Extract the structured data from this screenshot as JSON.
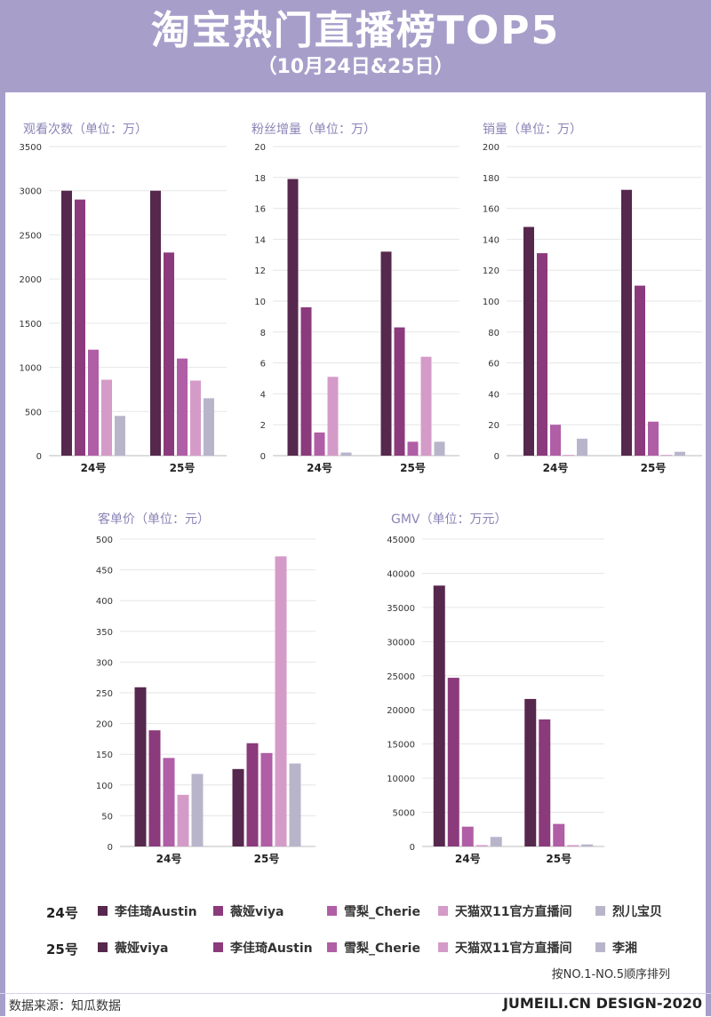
{
  "header": {
    "title": "淘宝热门直播榜TOP5",
    "subtitle": "（10月24日&25日）"
  },
  "colors": {
    "bg_band": "#a79fca",
    "series": [
      "#56284d",
      "#8b3a7c",
      "#b05ea6",
      "#d49bc8",
      "#b8b5cb"
    ],
    "series_25": [
      "#56284d",
      "#8b3a7c",
      "#b05ea6",
      "#d49bc8",
      "#b8b5cb"
    ]
  },
  "chart_data": [
    {
      "type": "bar",
      "title": "观看次数（单位：万）",
      "categories": [
        "24号",
        "25号"
      ],
      "ylim": [
        0,
        3500
      ],
      "yticks": [
        0,
        500,
        1000,
        1500,
        2000,
        2500,
        3000,
        3500
      ],
      "values": [
        [
          3000,
          2900,
          1200,
          860,
          450
        ],
        [
          3000,
          2300,
          1100,
          850,
          650
        ]
      ]
    },
    {
      "type": "bar",
      "title": "粉丝增量（单位：万）",
      "categories": [
        "24号",
        "25号"
      ],
      "ylim": [
        0,
        20
      ],
      "yticks": [
        0,
        2,
        4,
        6,
        8,
        10,
        12,
        14,
        16,
        18,
        20
      ],
      "values": [
        [
          17.9,
          9.6,
          1.5,
          5.1,
          0.2
        ],
        [
          13.2,
          8.3,
          0.9,
          6.4,
          0.9
        ]
      ]
    },
    {
      "type": "bar",
      "title": "销量（单位：万）",
      "categories": [
        "24号",
        "25号"
      ],
      "ylim": [
        0,
        200
      ],
      "yticks": [
        0,
        20,
        40,
        60,
        80,
        100,
        120,
        140,
        160,
        180,
        200
      ],
      "values": [
        [
          148,
          131,
          20,
          0.5,
          11
        ],
        [
          172,
          110,
          22,
          0.5,
          2.5
        ]
      ]
    },
    {
      "type": "bar",
      "title": "客单价（单位：元）",
      "categories": [
        "24号",
        "25号"
      ],
      "ylim": [
        0,
        500
      ],
      "yticks": [
        0,
        50,
        100,
        150,
        200,
        250,
        300,
        350,
        400,
        450,
        500
      ],
      "values": [
        [
          259,
          189,
          144,
          84,
          118
        ],
        [
          126,
          168,
          152,
          472,
          135
        ]
      ]
    },
    {
      "type": "bar",
      "title": "GMV（单位：万元）",
      "categories": [
        "24号",
        "25号"
      ],
      "ylim": [
        0,
        45000
      ],
      "yticks": [
        0,
        5000,
        10000,
        15000,
        20000,
        25000,
        30000,
        35000,
        40000,
        45000
      ],
      "values": [
        [
          38200,
          24700,
          2900,
          200,
          1400
        ],
        [
          21600,
          18600,
          3300,
          200,
          300
        ]
      ]
    }
  ],
  "legend": {
    "day24": {
      "label": "24号",
      "items": [
        "李佳琦Austin",
        "薇娅viya",
        "雪梨_Cherie",
        "天猫双11官方直播间",
        "烈儿宝贝"
      ]
    },
    "day25": {
      "label": "25号",
      "items": [
        "薇娅viya",
        "李佳琦Austin",
        "雪梨_Cherie",
        "天猫双11官方直播间",
        "李湘"
      ]
    }
  },
  "note": "按NO.1-NO.5顺序排列",
  "footer": {
    "source": "数据来源：知瓜数据",
    "brand": "JUMEILI.CN DESIGN-2020"
  }
}
